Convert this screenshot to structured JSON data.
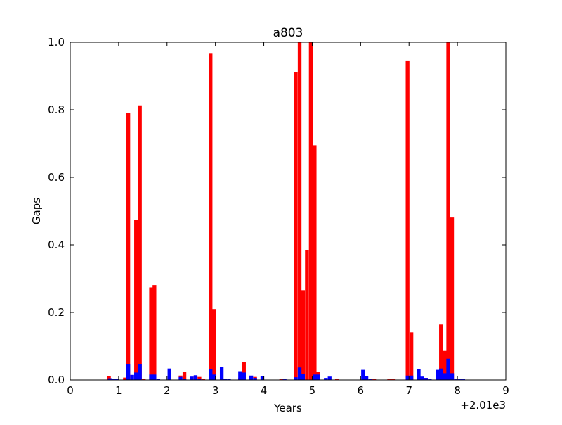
{
  "chart_data": {
    "type": "bar",
    "title": "a803",
    "xlabel": "Years",
    "ylabel": "Gaps",
    "x_offset_label": "+2.01e3",
    "xlim": [
      0,
      9
    ],
    "ylim": [
      0,
      1.0
    ],
    "x_ticks": [
      0,
      1,
      2,
      3,
      4,
      5,
      6,
      7,
      8,
      9
    ],
    "y_ticks": [
      0.0,
      0.2,
      0.4,
      0.6,
      0.8,
      1.0
    ],
    "x_tick_labels": [
      "0",
      "1",
      "2",
      "3",
      "4",
      "5",
      "6",
      "7",
      "8",
      "9"
    ],
    "y_tick_labels": [
      "0.0",
      "0.2",
      "0.4",
      "0.6",
      "0.8",
      "1.0"
    ],
    "grid": false,
    "bar_width": 0.077,
    "series": [
      {
        "color": "#ff0000",
        "x": [
          0.8,
          1.13,
          1.2,
          1.36,
          1.44,
          1.52,
          1.67,
          1.74,
          2.28,
          2.36,
          2.59,
          2.67,
          2.75,
          2.9,
          2.97,
          3.51,
          3.59,
          3.82,
          4.36,
          4.66,
          4.74,
          4.81,
          4.89,
          4.97,
          5.05,
          5.12,
          5.51,
          6.28,
          6.59,
          6.67,
          6.97,
          7.05,
          7.2,
          7.27,
          7.35,
          7.66,
          7.74,
          7.81,
          7.89
        ],
        "values": [
          0.012,
          0.007,
          0.79,
          0.475,
          0.813,
          0.004,
          0.274,
          0.281,
          0.013,
          0.024,
          0.011,
          0.009,
          0.004,
          0.966,
          0.21,
          0.006,
          0.053,
          0.009,
          0.002,
          0.911,
          1.0,
          0.266,
          0.385,
          1.0,
          0.695,
          0.024,
          0.002,
          0.002,
          0.002,
          0.002,
          0.946,
          0.141,
          0.006,
          0.008,
          0.006,
          0.164,
          0.086,
          1.0,
          0.481
        ]
      },
      {
        "color": "#0000ff",
        "x": [
          0.82,
          0.9,
          0.97,
          1.2,
          1.28,
          1.36,
          1.44,
          1.67,
          1.74,
          1.82,
          2.05,
          2.28,
          2.36,
          2.51,
          2.59,
          2.67,
          2.9,
          2.97,
          3.13,
          3.2,
          3.28,
          3.51,
          3.59,
          3.74,
          3.82,
          3.97,
          4.43,
          4.66,
          4.74,
          4.81,
          5.05,
          5.12,
          5.28,
          5.36,
          6.05,
          6.12,
          6.2,
          6.97,
          7.05,
          7.2,
          7.27,
          7.35,
          7.43,
          7.59,
          7.66,
          7.74,
          7.81,
          7.89,
          7.97,
          8.05,
          8.12
        ],
        "values": [
          0.005,
          0.004,
          0.003,
          0.047,
          0.015,
          0.022,
          0.047,
          0.016,
          0.016,
          0.004,
          0.034,
          0.009,
          0.004,
          0.01,
          0.014,
          0.004,
          0.032,
          0.016,
          0.039,
          0.004,
          0.004,
          0.026,
          0.022,
          0.013,
          0.006,
          0.012,
          0.002,
          0.008,
          0.037,
          0.018,
          0.016,
          0.016,
          0.006,
          0.01,
          0.03,
          0.012,
          0.002,
          0.013,
          0.013,
          0.032,
          0.01,
          0.006,
          0.002,
          0.03,
          0.034,
          0.02,
          0.063,
          0.02,
          0.002,
          0.002,
          0.002
        ]
      }
    ]
  }
}
